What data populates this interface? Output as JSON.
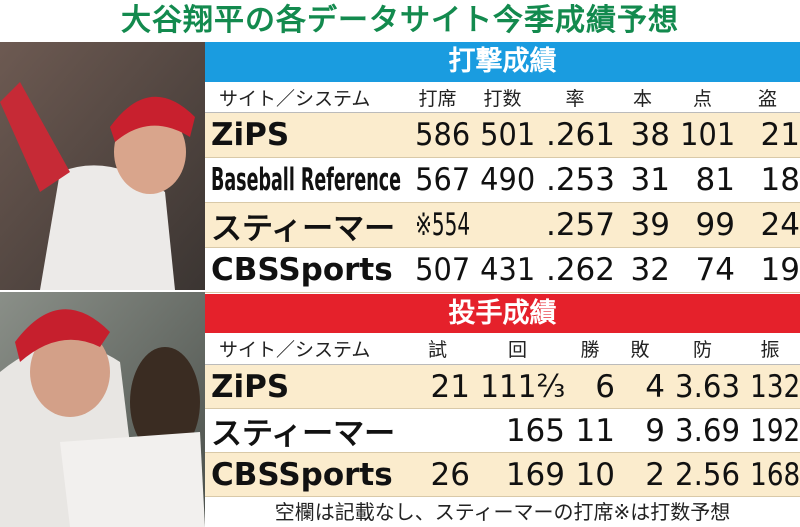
{
  "title": "大谷翔平の各データサイト今季成績予想",
  "batting": {
    "header": "打撃成績",
    "columns": [
      "サイト／システム",
      "打席",
      "打数",
      "率",
      "本",
      "点",
      "盗"
    ],
    "rows": [
      [
        "ZiPS",
        "586",
        "501",
        ".261",
        "38",
        "101",
        "21"
      ],
      [
        "Baseball Reference",
        "567",
        "490",
        ".253",
        "31",
        "81",
        "18"
      ],
      [
        "スティーマー",
        "※554",
        null,
        ".257",
        "39",
        "99",
        "24"
      ],
      [
        "CBSSports",
        "507",
        "431",
        ".262",
        "32",
        "74",
        "19"
      ]
    ]
  },
  "pitching": {
    "header": "投手成績",
    "columns": [
      "サイト／システム",
      "試",
      "回",
      "勝",
      "敗",
      "防",
      "振"
    ],
    "rows": [
      [
        "ZiPS",
        "21",
        "111⅔",
        "6",
        "4",
        "3.63",
        "132"
      ],
      [
        "スティーマー",
        null,
        "165",
        "11",
        "9",
        "3.69",
        "192"
      ],
      [
        "CBSSports",
        "26",
        "169",
        "10",
        "2",
        "2.56",
        "168"
      ]
    ]
  },
  "note": "空欄は記載なし、スティーマーの打席※は打数予想"
}
